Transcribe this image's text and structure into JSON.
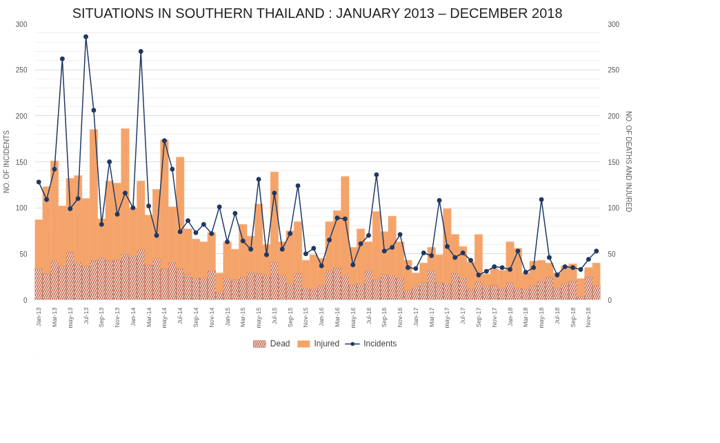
{
  "chart_data": {
    "type": "bar",
    "title": "SITUATIONS IN SOUTHERN THAILAND : JANUARY 2013 – DECEMBER 2018",
    "ylabel": "NO. OF INCIDENTS",
    "y2label": "NO. OF DEATHS AND INJURED",
    "categories": [
      "Jan-13",
      null,
      "Mar-13",
      null,
      "may-13",
      null,
      "Jul-13",
      null,
      "Sep-13",
      null,
      "Nov-13",
      null,
      "Jan-14",
      null,
      "Mar-14",
      null,
      "may-14",
      null,
      "Jul-14",
      null,
      "Sep-14",
      null,
      "Nov-14",
      null,
      "Jan-15",
      null,
      "Mar-15",
      null,
      "may-15",
      null,
      "Jul-15",
      null,
      "Sep-15",
      null,
      "Nov-15",
      null,
      "Jan-16",
      null,
      "Mar-16",
      null,
      "may-16",
      null,
      "Jul-16",
      null,
      "Sep-16",
      null,
      "Nov-16",
      null,
      "Jan-17",
      null,
      "Mar-17",
      null,
      "may-17",
      null,
      "Jul-17",
      null,
      "Sep-17",
      null,
      "Nov-17",
      null,
      "Jan-18",
      null,
      "Mar-18",
      null,
      "may-18",
      null,
      "Jul-18",
      null,
      "Sep-18",
      null,
      "Nov-18",
      null
    ],
    "stacked": true,
    "series": [
      {
        "name": "Dead",
        "color": "#b5533c",
        "values": [
          34,
          29,
          43,
          37,
          52,
          41,
          37,
          43,
          46,
          43,
          44,
          50,
          48,
          55,
          38,
          45,
          34,
          41,
          34,
          28,
          24,
          24,
          32,
          9,
          24,
          22,
          25,
          30,
          29,
          27,
          41,
          27,
          18,
          29,
          13,
          12,
          16,
          32,
          35,
          27,
          17,
          18,
          32,
          22,
          28,
          27,
          24,
          10,
          15,
          19,
          32,
          19,
          18,
          29,
          24,
          12,
          20,
          15,
          16,
          13,
          19,
          13,
          12,
          16,
          21,
          25,
          13,
          18,
          21,
          4,
          25,
          16
        ]
      },
      {
        "name": "Injured",
        "color": "#f4a46a",
        "values": [
          53,
          94,
          108,
          65,
          80,
          94,
          73,
          142,
          42,
          86,
          83,
          136,
          52,
          74,
          54,
          75,
          140,
          60,
          121,
          49,
          42,
          39,
          41,
          20,
          39,
          33,
          57,
          39,
          75,
          33,
          98,
          36,
          57,
          56,
          30,
          37,
          29,
          53,
          62,
          107,
          40,
          59,
          31,
          74,
          46,
          64,
          39,
          33,
          14,
          21,
          25,
          30,
          81,
          42,
          34,
          29,
          51,
          13,
          18,
          19,
          44,
          43,
          17,
          26,
          22,
          15,
          16,
          19,
          18,
          19,
          10,
          24
        ]
      },
      {
        "name": "Incidents",
        "type": "line",
        "color": "#1f3864",
        "values": [
          128,
          109,
          142,
          262,
          99,
          110,
          286,
          206,
          82,
          150,
          93,
          116,
          100,
          270,
          102,
          70,
          173,
          142,
          74,
          86,
          73,
          82,
          72,
          101,
          63,
          94,
          64,
          55,
          131,
          49,
          116,
          55,
          72,
          124,
          50,
          56,
          37,
          65,
          89,
          88,
          38,
          61,
          70,
          136,
          53,
          57,
          71,
          35,
          34,
          51,
          48,
          108,
          58,
          46,
          51,
          43,
          27,
          31,
          36,
          35,
          33,
          53,
          30,
          35,
          109,
          46,
          27,
          36,
          35,
          33,
          44,
          53
        ]
      }
    ],
    "ylim": [
      0,
      300
    ],
    "yticks": [
      0,
      50,
      100,
      150,
      200,
      250,
      300
    ],
    "y2lim": [
      0,
      300
    ],
    "y2ticks": [
      0,
      50,
      100,
      150,
      200,
      250,
      300
    ],
    "grid": "y",
    "legend": "bottom",
    "marker": "circle",
    "line_style": "solid"
  }
}
